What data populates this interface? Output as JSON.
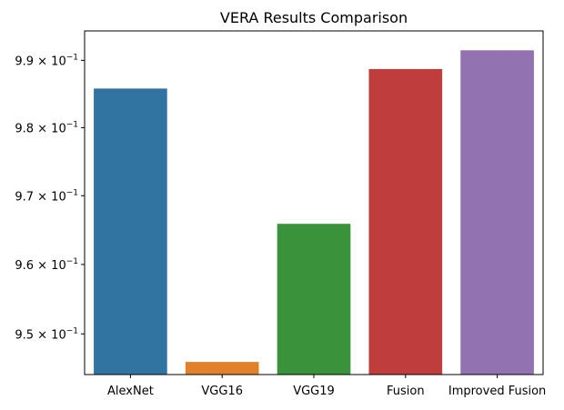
{
  "chart_data": {
    "type": "bar",
    "title": "VERA Results Comparison",
    "xlabel": "",
    "ylabel": "",
    "yscale": "log",
    "ylim": [
      0.9442,
      0.9944
    ],
    "grid": false,
    "categories": [
      "AlexNet",
      "VGG16",
      "VGG19",
      "Fusion",
      "Improved Fusion"
    ],
    "values": [
      0.9858,
      0.946,
      0.9659,
      0.9887,
      0.9915
    ],
    "colors": [
      "#3274a1",
      "#e1812c",
      "#3a923a",
      "#c03d3e",
      "#9372b2"
    ],
    "yticks": [
      {
        "value": 0.95,
        "mantissa": "9.5",
        "exponent": "−1"
      },
      {
        "value": 0.96,
        "mantissa": "9.6",
        "exponent": "−1"
      },
      {
        "value": 0.97,
        "mantissa": "9.7",
        "exponent": "−1"
      },
      {
        "value": 0.98,
        "mantissa": "9.8",
        "exponent": "−1"
      },
      {
        "value": 0.99,
        "mantissa": "9.9",
        "exponent": "−1"
      }
    ]
  }
}
